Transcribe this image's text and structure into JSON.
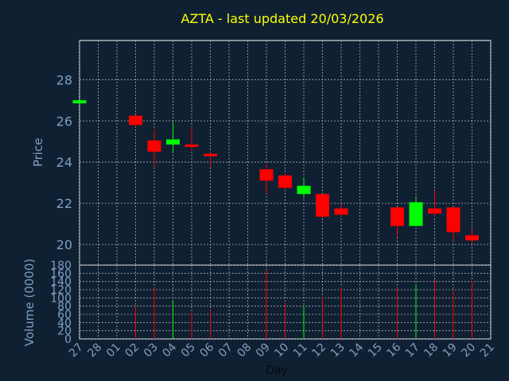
{
  "chart_data": {
    "type": "candlestick",
    "title": "AZTA - last updated 20/03/2026",
    "price_ylabel": "Price",
    "volume_ylabel": "Volume (0000)",
    "xlabel": "Day",
    "x_ticks": [
      "27",
      "28",
      "01",
      "02",
      "03",
      "04",
      "05",
      "06",
      "07",
      "08",
      "09",
      "10",
      "11",
      "12",
      "13",
      "14",
      "15",
      "16",
      "17",
      "18",
      "19",
      "20",
      "21"
    ],
    "price_ylim": [
      19.0,
      29.9
    ],
    "price_yticks": [
      "20",
      "22",
      "24",
      "26",
      "28"
    ],
    "volume_ylim": [
      0,
      180
    ],
    "volume_yticks": [
      "0",
      "20",
      "40",
      "60",
      "80",
      "100",
      "120",
      "140",
      "160",
      "180"
    ],
    "grid": true,
    "colors": {
      "background": "#0f2033",
      "title": "#ffff00",
      "axis_text": "#7f9fc0",
      "frame": "#ffffff",
      "grid": "#b0b0b0",
      "up": "#00ff00",
      "down": "#ff0000"
    },
    "candles": [
      {
        "x": "27",
        "open": 26.85,
        "high": 27.0,
        "low": 26.85,
        "close": 27.0,
        "volume": 0
      },
      {
        "x": "02",
        "open": 26.25,
        "high": 26.3,
        "low": 25.7,
        "close": 25.8,
        "volume": 80
      },
      {
        "x": "03",
        "open": 25.05,
        "high": 25.6,
        "low": 23.75,
        "close": 24.5,
        "volume": 125
      },
      {
        "x": "04",
        "open": 24.85,
        "high": 25.95,
        "low": 24.5,
        "close": 25.1,
        "volume": 95
      },
      {
        "x": "05",
        "open": 24.85,
        "high": 25.7,
        "low": 24.55,
        "close": 24.75,
        "volume": 65
      },
      {
        "x": "06",
        "open": 24.4,
        "high": 24.5,
        "low": 23.75,
        "close": 24.3,
        "volume": 72
      },
      {
        "x": "09",
        "open": 23.65,
        "high": 23.9,
        "low": 22.45,
        "close": 23.1,
        "volume": 168
      },
      {
        "x": "10",
        "open": 23.35,
        "high": 23.45,
        "low": 22.7,
        "close": 22.75,
        "volume": 88
      },
      {
        "x": "11",
        "open": 22.45,
        "high": 23.25,
        "low": 22.25,
        "close": 22.85,
        "volume": 80
      },
      {
        "x": "12",
        "open": 22.45,
        "high": 22.45,
        "low": 21.3,
        "close": 21.35,
        "volume": 102
      },
      {
        "x": "13",
        "open": 21.75,
        "high": 21.95,
        "low": 21.35,
        "close": 21.45,
        "volume": 125
      },
      {
        "x": "16",
        "open": 21.8,
        "high": 21.8,
        "low": 20.35,
        "close": 20.9,
        "volume": 125
      },
      {
        "x": "17",
        "open": 20.9,
        "high": 22.3,
        "low": 20.9,
        "close": 22.05,
        "volume": 132
      },
      {
        "x": "18",
        "open": 21.75,
        "high": 22.6,
        "low": 21.35,
        "close": 21.5,
        "volume": 145
      },
      {
        "x": "19",
        "open": 21.8,
        "high": 21.8,
        "low": 20.15,
        "close": 20.6,
        "volume": 118
      },
      {
        "x": "20",
        "open": 20.45,
        "high": 20.75,
        "low": 20.05,
        "close": 20.2,
        "volume": 142
      }
    ]
  }
}
